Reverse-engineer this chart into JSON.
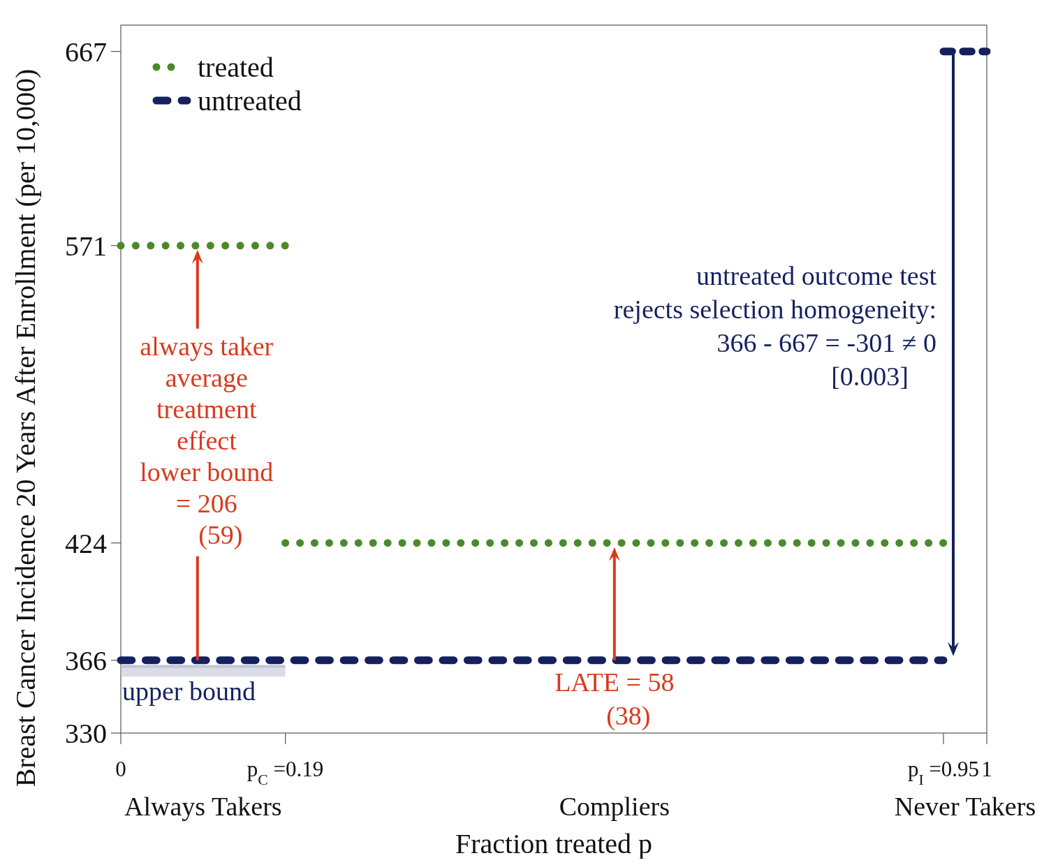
{
  "chart_data": {
    "type": "line",
    "xlabel": "Fraction treated p",
    "ylabel": "Breast Cancer Incidence 20 Years After Enrollment (per 10,000)",
    "xlim": [
      0,
      1
    ],
    "ylim": [
      330,
      680
    ],
    "xticks": [
      0,
      {
        "value": 0.19,
        "label": "p$_{C}$ =0.19"
      },
      {
        "value": 0.95,
        "label": "p$_{I}$ =0.95"
      },
      1
    ],
    "yticks": [
      330,
      366,
      424,
      571,
      667
    ],
    "legend": "top left",
    "series": [
      {
        "name": "treated",
        "color": "#4b8a2b",
        "line_style": "dotted",
        "x": [
          0,
          0.19
        ],
        "values": [
          571,
          571
        ]
      },
      {
        "color": "#4b8a2b",
        "line_style": "dotted",
        "x": [
          0.19,
          0.95
        ],
        "values": [
          424,
          424
        ]
      },
      {
        "name": "untreated",
        "color": "#15215e",
        "line_style": "dashed",
        "x": [
          0,
          0.95
        ],
        "values": [
          366,
          366
        ]
      },
      {
        "color": "#15215e",
        "line_style": "dashed",
        "x": [
          0.95,
          1
        ],
        "values": [
          667,
          667
        ]
      },
      {
        "color": "#c1c5d7",
        "x": [
          0,
          0.19
        ],
        "values": [
          363,
          363
        ],
        "lower": [
          358,
          358
        ],
        "upper": [
          363,
          363
        ]
      }
    ],
    "annotations": [
      "always taker\naverage\ntreatment\neffect\nlower bound\n= 206\n(59)",
      "LATE = 58\n(38)",
      "untreated outcome test\nrejects selection homogeneity:\n366 - 667 = -301 ≠ 0\n[0.003]",
      "upper bound",
      "Always Takers",
      "Compliers",
      "Never Takers"
    ]
  }
}
